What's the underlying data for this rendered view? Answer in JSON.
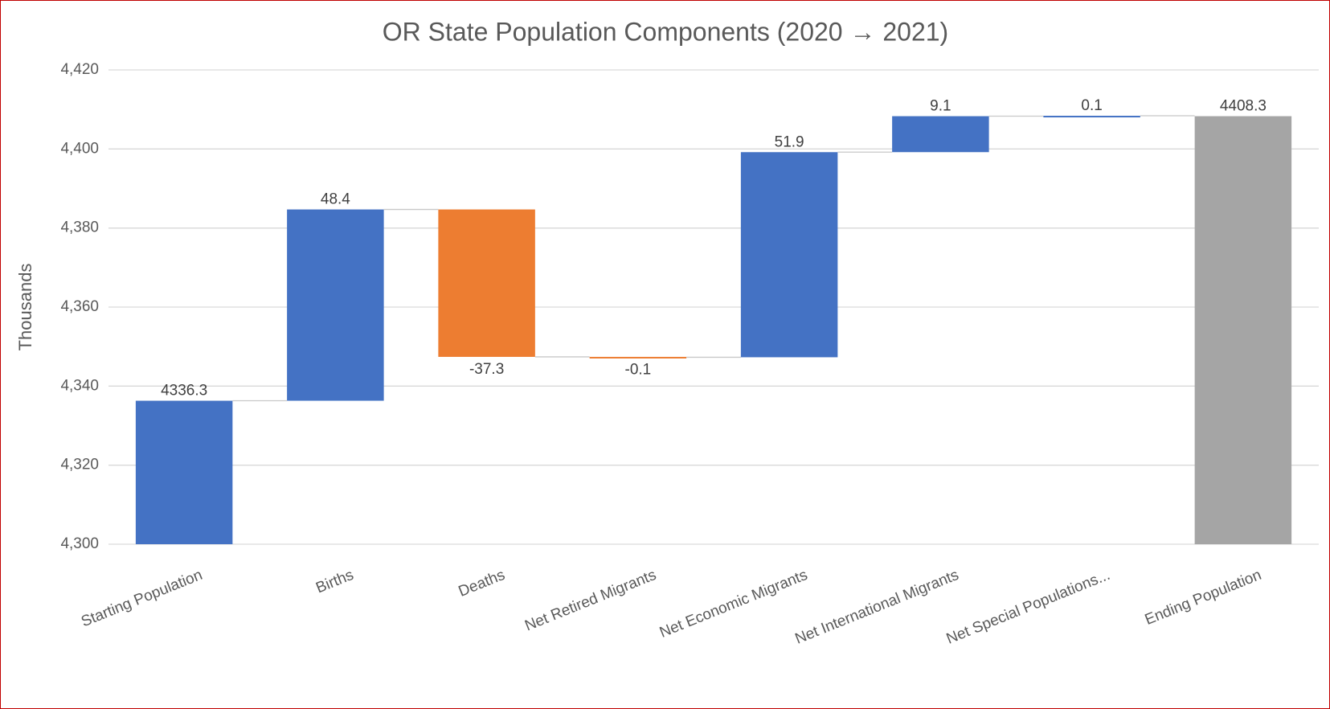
{
  "chart_data": {
    "type": "waterfall",
    "title": "OR State Population Components (2020 → 2021)",
    "y_label": "Thousands",
    "categories": [
      "Starting Population",
      "Births",
      "Deaths",
      "Net Retired Migrants",
      "Net Economic Migrants",
      "Net International Migrants",
      "Net Special Populations...",
      "Ending Population"
    ],
    "values": [
      4336.3,
      48.4,
      -37.3,
      -0.1,
      51.9,
      9.1,
      0.1,
      4408.3
    ],
    "totals": [
      0,
      7
    ],
    "colors": [
      "#4472c4",
      "#4472c4",
      "#ed7d31",
      "#ed7d31",
      "#4472c4",
      "#4472c4",
      "#4472c4",
      "#a5a5a5"
    ],
    "ylim": [
      4300,
      4420
    ],
    "yticks": [
      {
        "value": 4300,
        "label": "4,300"
      },
      {
        "value": 4320,
        "label": "4,320"
      },
      {
        "value": 4340,
        "label": "4,340"
      },
      {
        "value": 4360,
        "label": "4,360"
      },
      {
        "value": 4380,
        "label": "4,380"
      },
      {
        "value": 4400,
        "label": "4,400"
      },
      {
        "value": 4420,
        "label": "4,420"
      }
    ],
    "grid": true
  }
}
